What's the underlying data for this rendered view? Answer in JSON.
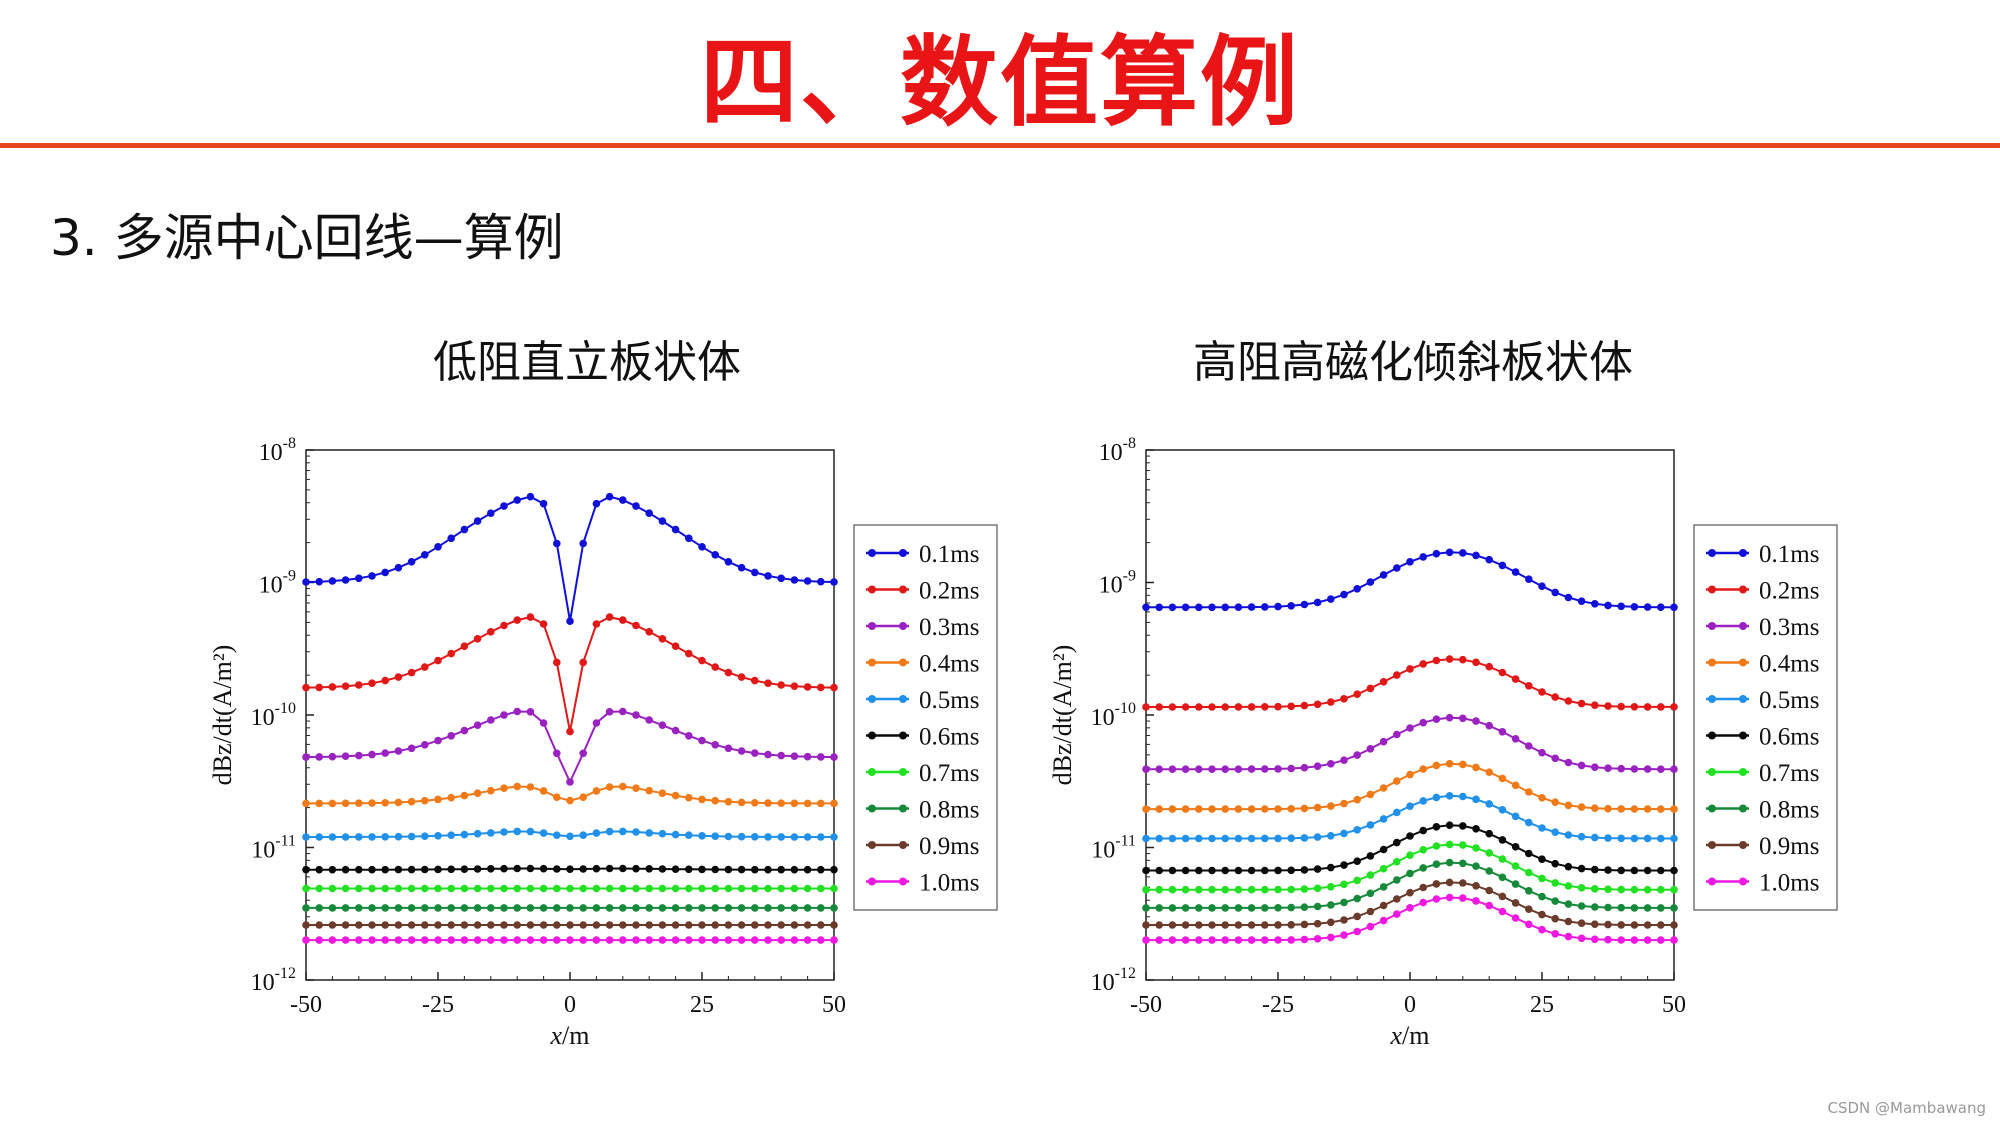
{
  "slide": {
    "title": "四、数值算例",
    "subtitle": "3.  多源中心回线—算例",
    "watermark": "CSDN @Mambawang",
    "accent_color": "#e81416"
  },
  "chart_data": [
    {
      "type": "line",
      "title": "低阻直立板状体",
      "xlabel_italic": "x",
      "xlabel_unit": "/m",
      "ylabel": "dBz/dt(A/m²)",
      "xlim": [
        -50,
        50
      ],
      "xticks": [
        "-50",
        "-25",
        "0",
        "25",
        "50"
      ],
      "yscale": "log",
      "yticks": [
        {
          "base": "10",
          "exp": "-8"
        },
        {
          "base": "10",
          "exp": "-9"
        },
        {
          "base": "10",
          "exp": "-10"
        },
        {
          "base": "10",
          "exp": "-11"
        },
        {
          "base": "10",
          "exp": "-12"
        }
      ],
      "ylim_exp": [
        -12,
        -8
      ],
      "legend_position": "right",
      "x_step": 2.5,
      "series": [
        {
          "name": "0.1ms",
          "color": "#1010d8",
          "baseline": 1e-09,
          "amp": 4.1,
          "ctr": 0,
          "w": 20,
          "dip": 0.9,
          "dipw": 4
        },
        {
          "name": "0.2ms",
          "color": "#e01818",
          "baseline": 1.6e-10,
          "amp": 2.9,
          "ctr": 0,
          "w": 20,
          "dip": 0.88,
          "dipw": 4
        },
        {
          "name": "0.3ms",
          "color": "#9a22c0",
          "baseline": 4.8e-11,
          "amp": 1.6,
          "ctr": 0,
          "w": 20,
          "dip": 0.75,
          "dipw": 5
        },
        {
          "name": "0.4ms",
          "color": "#f07a18",
          "baseline": 2.15e-11,
          "amp": 0.5,
          "ctr": 0,
          "w": 18,
          "dip": 0.3,
          "dipw": 6
        },
        {
          "name": "0.5ms",
          "color": "#2090e8",
          "baseline": 1.2e-11,
          "amp": 0.15,
          "ctr": 0,
          "w": 18,
          "dip": 0.12,
          "dipw": 6
        },
        {
          "name": "0.6ms",
          "color": "#0a0a0a",
          "baseline": 6.8e-12,
          "amp": 0.03,
          "ctr": 0,
          "w": 18,
          "dip": 0.02,
          "dipw": 6
        },
        {
          "name": "0.7ms",
          "color": "#22e022",
          "baseline": 4.9e-12,
          "amp": 0,
          "ctr": 0,
          "w": 18,
          "dip": 0,
          "dipw": 6
        },
        {
          "name": "0.8ms",
          "color": "#168a3a",
          "baseline": 3.5e-12,
          "amp": 0,
          "ctr": 0,
          "w": 18,
          "dip": 0,
          "dipw": 6
        },
        {
          "name": "0.9ms",
          "color": "#6a3a2a",
          "baseline": 2.6e-12,
          "amp": 0,
          "ctr": 0,
          "w": 18,
          "dip": 0,
          "dipw": 6
        },
        {
          "name": "1.0ms",
          "color": "#ee18e0",
          "baseline": 2e-12,
          "amp": 0,
          "ctr": 0,
          "w": 18,
          "dip": 0,
          "dipw": 6
        }
      ]
    },
    {
      "type": "line",
      "title": "高阻高磁化倾斜板状体",
      "xlabel_italic": "x",
      "xlabel_unit": "/m",
      "ylabel": "dBz/dt(A/m²)",
      "xlim": [
        -50,
        50
      ],
      "xticks": [
        "-50",
        "-25",
        "0",
        "25",
        "50"
      ],
      "yscale": "log",
      "yticks": [
        {
          "base": "10",
          "exp": "-8"
        },
        {
          "base": "10",
          "exp": "-9"
        },
        {
          "base": "10",
          "exp": "-10"
        },
        {
          "base": "10",
          "exp": "-11"
        },
        {
          "base": "10",
          "exp": "-12"
        }
      ],
      "ylim_exp": [
        -12,
        -8
      ],
      "legend_position": "right",
      "x_step": 2.5,
      "series": [
        {
          "name": "0.1ms",
          "color": "#1010d8",
          "baseline": 6.5e-10,
          "amp": 1.6,
          "ctr": 8,
          "w": 15,
          "dip": 0,
          "dipw": 4
        },
        {
          "name": "0.2ms",
          "color": "#e01818",
          "baseline": 1.15e-10,
          "amp": 1.3,
          "ctr": 8,
          "w": 14,
          "dip": 0,
          "dipw": 4
        },
        {
          "name": "0.3ms",
          "color": "#9a22c0",
          "baseline": 3.9e-11,
          "amp": 1.45,
          "ctr": 8,
          "w": 14,
          "dip": 0,
          "dipw": 4
        },
        {
          "name": "0.4ms",
          "color": "#f07a18",
          "baseline": 1.95e-11,
          "amp": 1.2,
          "ctr": 8,
          "w": 13,
          "dip": 0,
          "dipw": 4
        },
        {
          "name": "0.5ms",
          "color": "#2090e8",
          "baseline": 1.17e-11,
          "amp": 1.1,
          "ctr": 8,
          "w": 13,
          "dip": 0,
          "dipw": 4
        },
        {
          "name": "0.6ms",
          "color": "#0a0a0a",
          "baseline": 6.7e-12,
          "amp": 1.2,
          "ctr": 8,
          "w": 13,
          "dip": 0,
          "dipw": 4
        },
        {
          "name": "0.7ms",
          "color": "#22e022",
          "baseline": 4.8e-12,
          "amp": 1.2,
          "ctr": 8,
          "w": 13,
          "dip": 0,
          "dipw": 4
        },
        {
          "name": "0.8ms",
          "color": "#168a3a",
          "baseline": 3.5e-12,
          "amp": 1.2,
          "ctr": 8,
          "w": 13,
          "dip": 0,
          "dipw": 4
        },
        {
          "name": "0.9ms",
          "color": "#6a3a2a",
          "baseline": 2.6e-12,
          "amp": 1.1,
          "ctr": 8,
          "w": 13,
          "dip": 0,
          "dipw": 4
        },
        {
          "name": "1.0ms",
          "color": "#ee18e0",
          "baseline": 2e-12,
          "amp": 1.1,
          "ctr": 8,
          "w": 13,
          "dip": 0,
          "dipw": 4
        }
      ]
    }
  ]
}
